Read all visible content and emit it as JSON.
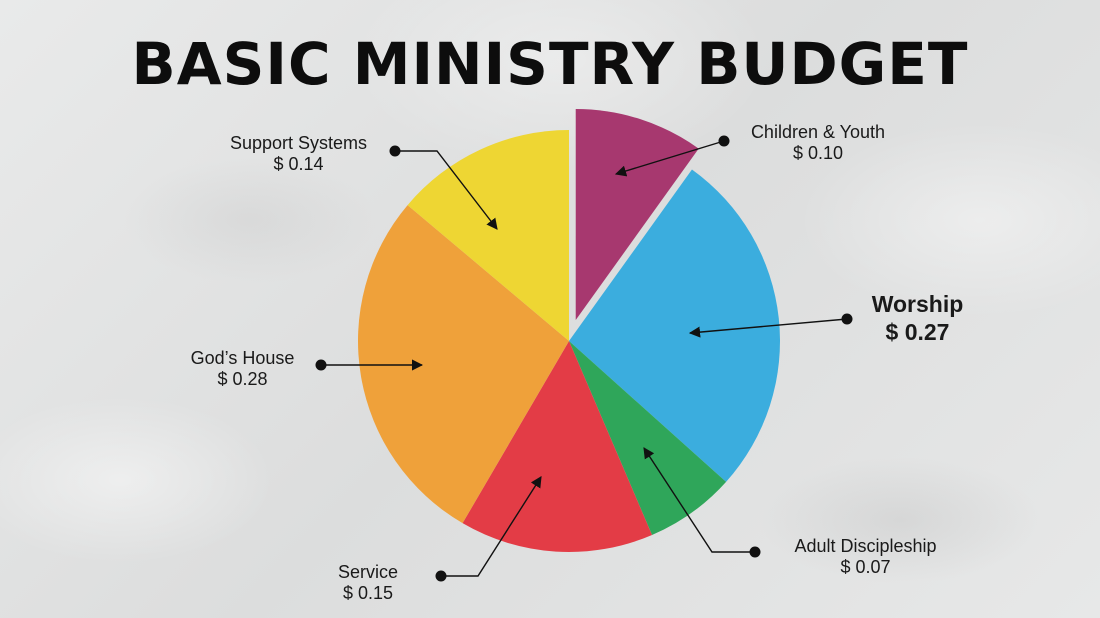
{
  "title": "BASIC MINISTRY BUDGET",
  "chart_data": {
    "type": "pie",
    "title": "BASIC MINISTRY BUDGET",
    "slices": [
      {
        "name": "Children & Youth",
        "value": 0.1,
        "value_label": "$ 0.10",
        "color": "#a7386f",
        "exploded": true
      },
      {
        "name": "Worship",
        "value": 0.27,
        "value_label": "$ 0.27",
        "color": "#3badde",
        "emphasized": true
      },
      {
        "name": "Adult Discipleship",
        "value": 0.07,
        "value_label": "$ 0.07",
        "color": "#2fa65a"
      },
      {
        "name": "Service",
        "value": 0.15,
        "value_label": "$ 0.15",
        "color": "#e33c46"
      },
      {
        "name": "God’s House",
        "value": 0.28,
        "value_label": "$ 0.28",
        "color": "#efa13a"
      },
      {
        "name": "Support Systems",
        "value": 0.14,
        "value_label": "$ 0.14",
        "color": "#eed633"
      }
    ],
    "start_angle": "12 o'clock",
    "direction": "clockwise",
    "legend": "none (callout labels with arrows)"
  }
}
